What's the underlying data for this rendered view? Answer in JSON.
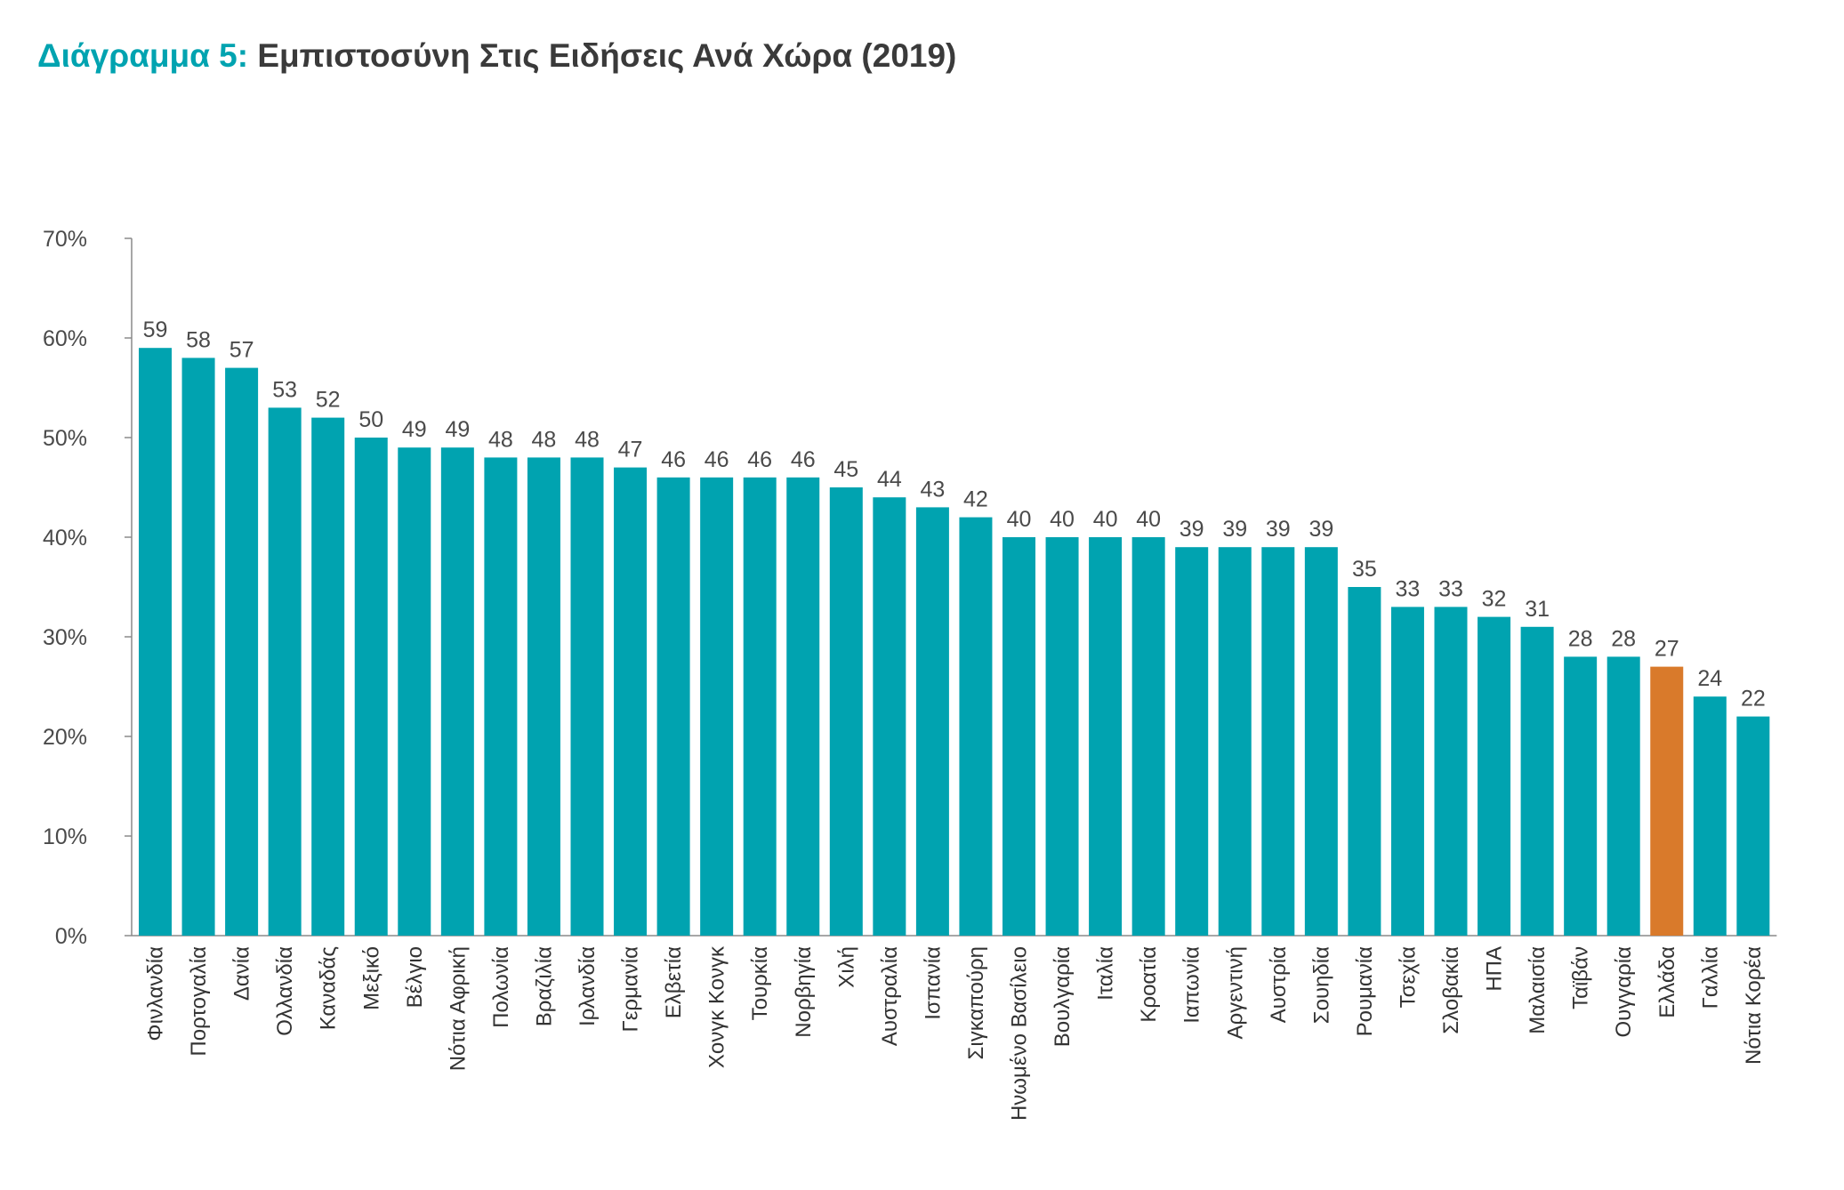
{
  "title": {
    "prefix": "Διάγραμμα 5:",
    "text": "Εμπιστοσύνη Στις Ειδήσεις Ανά Χώρα (2019)"
  },
  "colors": {
    "bar": "#00a3b0",
    "highlight": "#d97a2b",
    "title_prefix": "#00a3b0",
    "axis": "#8a8a8a",
    "text": "#4a4a4a"
  },
  "chart_data": {
    "type": "bar",
    "title": "Διάγραμμα 5: Εμπιστοσύνη Στις Ειδήσεις Ανά Χώρα (2019)",
    "xlabel": "",
    "ylabel": "",
    "ylim": [
      0,
      70
    ],
    "yticks": [
      "0%",
      "10%",
      "20%",
      "30%",
      "40%",
      "50%",
      "60%",
      "70%"
    ],
    "grid": false,
    "legend": "none",
    "highlight_category": "Ελλάδα",
    "categories": [
      "Φινλανδία",
      "Πορτογαλία",
      "Δανία",
      "Ολλανδία",
      "Καναδάς",
      "Μεξικό",
      "Βέλγιο",
      "Νότια Αφρική",
      "Πολωνία",
      "Βραζιλία",
      "Ιρλανδία",
      "Γερμανία",
      "Ελβετία",
      "Χονγκ Κονγκ",
      "Τουρκία",
      "Νορβηγία",
      "Χιλή",
      "Αυστραλία",
      "Ισπανία",
      "Σιγκαπούρη",
      "Ηνωμένο Βασίλειο",
      "Βουλγαρία",
      "Ιταλία",
      "Κροατία",
      "Ιαπωνία",
      "Αργεντινή",
      "Αυστρία",
      "Σουηδία",
      "Ρουμανία",
      "Τσεχία",
      "Σλοβακία",
      "ΗΠΑ",
      "Μαλαισία",
      "Ταϊβάν",
      "Ουγγαρία",
      "Ελλάδα",
      "Γαλλία",
      "Νότια Κορέα"
    ],
    "values": [
      59,
      58,
      57,
      53,
      52,
      50,
      49,
      49,
      48,
      48,
      48,
      47,
      46,
      46,
      46,
      46,
      45,
      44,
      43,
      42,
      40,
      40,
      40,
      40,
      39,
      39,
      39,
      39,
      35,
      33,
      33,
      32,
      31,
      28,
      28,
      27,
      24,
      22
    ]
  }
}
